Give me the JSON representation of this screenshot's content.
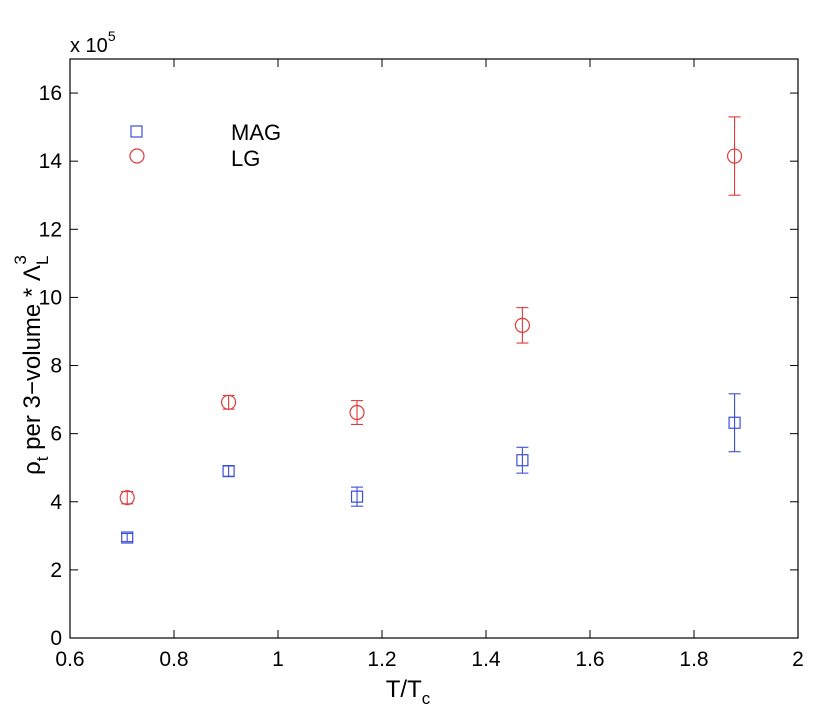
{
  "chart_data": {
    "type": "scatter",
    "title": "",
    "xlabel": {
      "main": "T/T",
      "sub": "c"
    },
    "ylabel": {
      "pre": "ρ",
      "pre_sub": "t",
      "main": " per 3−volume * Λ",
      "sub": "L",
      "sup": "3"
    },
    "y_multiplier": {
      "base": "x 10",
      "exp": "5"
    },
    "xlim": [
      0.6,
      2.0
    ],
    "ylim": [
      0,
      17
    ],
    "xticks": [
      0.6,
      0.8,
      1.0,
      1.2,
      1.4,
      1.6,
      1.8,
      2.0
    ],
    "xtick_labels": [
      "0.6",
      "0.8",
      "1",
      "1.2",
      "1.4",
      "1.6",
      "1.8",
      "2"
    ],
    "yticks": [
      0,
      2,
      4,
      6,
      8,
      10,
      12,
      14,
      16
    ],
    "ytick_labels": [
      "0",
      "2",
      "4",
      "6",
      "8",
      "10",
      "12",
      "14",
      "16"
    ],
    "grid": false,
    "legend_position": "top-left",
    "series": [
      {
        "name": "MAG",
        "marker": "square",
        "color": "#3b4fd8",
        "x": [
          0.71,
          0.905,
          1.152,
          1.47,
          1.878
        ],
        "y": [
          2.95,
          4.9,
          4.15,
          5.22,
          6.32
        ],
        "yerr": [
          0.12,
          0.15,
          0.28,
          0.38,
          0.85
        ]
      },
      {
        "name": "LG",
        "marker": "circle",
        "color": "#e03a3a",
        "x": [
          0.71,
          0.905,
          1.152,
          1.47,
          1.878
        ],
        "y": [
          4.12,
          6.92,
          6.62,
          9.18,
          14.15
        ],
        "yerr": [
          0.18,
          0.2,
          0.35,
          0.52,
          1.15
        ]
      }
    ]
  }
}
